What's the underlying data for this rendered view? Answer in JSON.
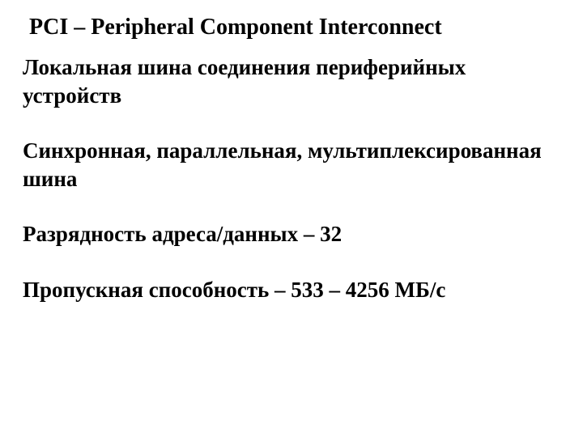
{
  "title": "PCI – Peripheral Component Interconnect",
  "bullets": [
    "Локальная шина соединения периферийных устройств",
    "Синхронная, параллельная, мультиплексированная шина",
    "Разрядность адреса/данных – 32",
    "Пропускная способность – 533 – 4256 МБ/с"
  ],
  "colors": {
    "background": "#ffffff",
    "text": "#000000"
  },
  "typography": {
    "font_family": "Times New Roman",
    "title_fontsize": 28,
    "bullet_fontsize": 27,
    "font_weight": "bold"
  }
}
